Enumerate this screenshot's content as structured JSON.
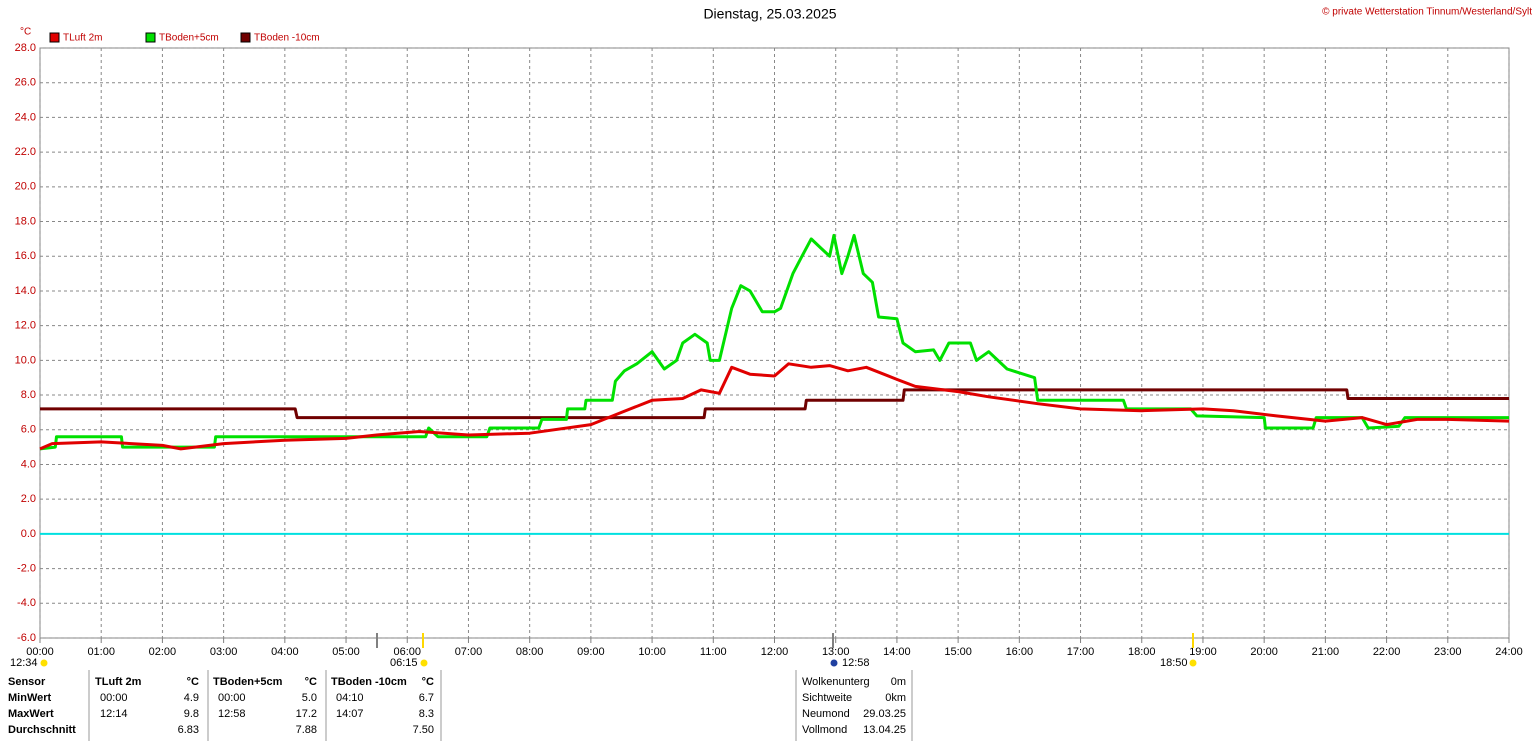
{
  "chart_data": {
    "type": "line",
    "title": "Dienstag, 25.03.2025",
    "credit": "© private Wetterstation Tinnum/Westerland/Sylt",
    "y_unit": "°C",
    "ylim": [
      -6,
      28
    ],
    "yticks": [
      {
        "value": -6,
        "label": "-6.0"
      },
      {
        "value": -4,
        "label": "-4.0"
      },
      {
        "value": -2,
        "label": "-2.0"
      },
      {
        "value": 0,
        "label": "0.0"
      },
      {
        "value": 2,
        "label": "2.0"
      },
      {
        "value": 4,
        "label": "4.0"
      },
      {
        "value": 6,
        "label": "6.0"
      },
      {
        "value": 8,
        "label": "8.0"
      },
      {
        "value": 10,
        "label": "10.0"
      },
      {
        "value": 12,
        "label": "12.0"
      },
      {
        "value": 14,
        "label": "14.0"
      },
      {
        "value": 16,
        "label": "16.0"
      },
      {
        "value": 18,
        "label": "18.0"
      },
      {
        "value": 20,
        "label": "20.0"
      },
      {
        "value": 22,
        "label": "22.0"
      },
      {
        "value": 24,
        "label": "24.0"
      },
      {
        "value": 26,
        "label": "26.0"
      },
      {
        "value": 28,
        "label": "28.0"
      }
    ],
    "xlim": [
      0,
      24
    ],
    "xticks": [
      {
        "value": 0,
        "label": "00:00"
      },
      {
        "value": 1,
        "label": "01:00"
      },
      {
        "value": 2,
        "label": "02:00"
      },
      {
        "value": 3,
        "label": "03:00"
      },
      {
        "value": 4,
        "label": "04:00"
      },
      {
        "value": 5,
        "label": "05:00"
      },
      {
        "value": 6,
        "label": "06:00"
      },
      {
        "value": 7,
        "label": "07:00"
      },
      {
        "value": 8,
        "label": "08:00"
      },
      {
        "value": 9,
        "label": "09:00"
      },
      {
        "value": 10,
        "label": "10:00"
      },
      {
        "value": 11,
        "label": "11:00"
      },
      {
        "value": 12,
        "label": "12:00"
      },
      {
        "value": 13,
        "label": "13:00"
      },
      {
        "value": 14,
        "label": "14:00"
      },
      {
        "value": 15,
        "label": "15:00"
      },
      {
        "value": 16,
        "label": "16:00"
      },
      {
        "value": 17,
        "label": "17:00"
      },
      {
        "value": 18,
        "label": "18:00"
      },
      {
        "value": 19,
        "label": "19:00"
      },
      {
        "value": 20,
        "label": "20:00"
      },
      {
        "value": 21,
        "label": "21:00"
      },
      {
        "value": 22,
        "label": "22:00"
      },
      {
        "value": 23,
        "label": "23:00"
      },
      {
        "value": 24,
        "label": "24:00"
      }
    ],
    "grid": true,
    "zero_line_color": "#00e0e0",
    "series": [
      {
        "name": "TLuft 2m",
        "color": "#e00000",
        "x": [
          0,
          0.2,
          1,
          2,
          2.3,
          3,
          4,
          5,
          5.5,
          6.2,
          7,
          8,
          9,
          9.5,
          10,
          10.5,
          10.8,
          11.1,
          11.3,
          11.6,
          12,
          12.23,
          12.6,
          12.9,
          13.2,
          13.5,
          14,
          14.3,
          15,
          15.5,
          16.3,
          17,
          18,
          19,
          19.5,
          20.2,
          21,
          21.6,
          22,
          22.5,
          23,
          24
        ],
        "values": [
          4.9,
          5.2,
          5.3,
          5.1,
          4.9,
          5.2,
          5.4,
          5.5,
          5.7,
          5.9,
          5.7,
          5.8,
          6.3,
          7.0,
          7.7,
          7.8,
          8.3,
          8.1,
          9.6,
          9.2,
          9.1,
          9.8,
          9.6,
          9.7,
          9.4,
          9.6,
          8.9,
          8.5,
          8.2,
          7.9,
          7.5,
          7.2,
          7.1,
          7.2,
          7.1,
          6.8,
          6.5,
          6.7,
          6.3,
          6.6,
          6.6,
          6.5
        ]
      },
      {
        "name": "TBoden+5cm",
        "color": "#00e000",
        "x": [
          0,
          0.25,
          0.27,
          1.33,
          1.35,
          2.85,
          2.87,
          6.3,
          6.35,
          6.5,
          7.3,
          7.35,
          8.15,
          8.2,
          8.6,
          8.62,
          8.9,
          8.92,
          9.35,
          9.4,
          9.55,
          9.75,
          10.0,
          10.2,
          10.4,
          10.5,
          10.7,
          10.9,
          10.95,
          11.1,
          11.3,
          11.45,
          11.6,
          11.8,
          12.0,
          12.1,
          12.3,
          12.45,
          12.6,
          12.75,
          12.9,
          12.97,
          13.1,
          13.2,
          13.3,
          13.45,
          13.6,
          13.7,
          14.0,
          14.1,
          14.3,
          14.6,
          14.7,
          14.85,
          15.2,
          15.3,
          15.5,
          15.65,
          15.8,
          16.25,
          16.3,
          17.7,
          17.75,
          18.8,
          18.9,
          20.0,
          20.02,
          20.8,
          20.85,
          21.6,
          21.7,
          22.2,
          22.3,
          24
        ],
        "values": [
          4.9,
          5.0,
          5.6,
          5.6,
          5.0,
          5.0,
          5.6,
          5.6,
          6.1,
          5.6,
          5.6,
          6.1,
          6.1,
          6.6,
          6.6,
          7.2,
          7.2,
          7.7,
          7.7,
          8.8,
          9.4,
          9.8,
          10.5,
          9.5,
          10.0,
          11.0,
          11.5,
          11.0,
          10.0,
          10.0,
          13.0,
          14.3,
          14.0,
          12.8,
          12.8,
          13.0,
          15.0,
          16.0,
          17.0,
          16.5,
          16.0,
          17.2,
          15.0,
          16.0,
          17.2,
          15.0,
          14.5,
          12.5,
          12.4,
          11.0,
          10.5,
          10.6,
          10.0,
          11.0,
          11.0,
          10.0,
          10.5,
          10.0,
          9.5,
          9.0,
          7.7,
          7.7,
          7.2,
          7.2,
          6.8,
          6.7,
          6.1,
          6.1,
          6.7,
          6.7,
          6.1,
          6.2,
          6.7,
          6.7
        ]
      },
      {
        "name": "TBoden -10cm",
        "color": "#700000",
        "x": [
          0,
          4.17,
          4.2,
          10.85,
          10.87,
          12.5,
          12.52,
          14.1,
          14.12,
          21.35,
          21.37,
          24
        ],
        "values": [
          7.2,
          7.2,
          6.7,
          6.7,
          7.2,
          7.2,
          7.7,
          7.7,
          8.3,
          8.3,
          7.8,
          7.8
        ]
      }
    ],
    "astro": [
      "12:34",
      "06:15",
      "12:58",
      "18:50"
    ]
  },
  "stats": {
    "rows": [
      [
        "Sensor",
        "TLuft 2m",
        "°C",
        "TBoden+5cm",
        "°C",
        "TBoden -10cm",
        "°C"
      ],
      [
        "MinWert",
        "00:00",
        "4.9",
        "00:00",
        "5.0",
        "04:10",
        "6.7"
      ],
      [
        "MaxWert",
        "12:14",
        "9.8",
        "12:58",
        "17.2",
        "14:07",
        "8.3"
      ],
      [
        "Durchschnitt",
        null,
        "6.83",
        null,
        "7.88",
        null,
        "7.50"
      ]
    ]
  },
  "info": {
    "rows": [
      [
        "Wolkenunterg",
        "0m"
      ],
      [
        "Sichtweite",
        "0km"
      ],
      [
        "Neumond",
        "29.03.25"
      ],
      [
        "Vollmond",
        "13.04.25"
      ]
    ]
  }
}
